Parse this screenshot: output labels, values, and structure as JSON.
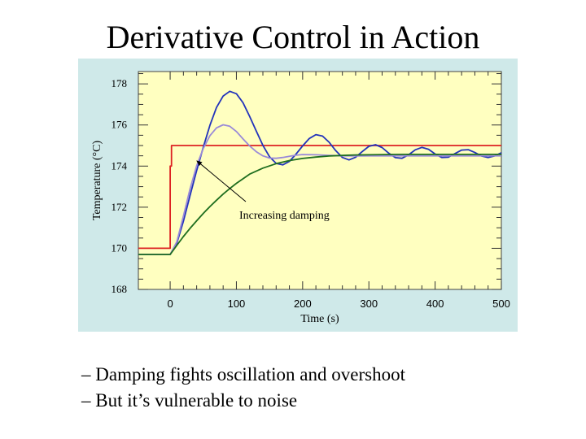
{
  "slide": {
    "title": "Derivative Control in Action",
    "bullets": [
      "– Damping fights oscillation and overshoot",
      "– But it’s vulnerable to noise"
    ]
  },
  "chart_data": {
    "type": "line",
    "title": "",
    "xlabel": "Time (s)",
    "ylabel": "Temperature (°C)",
    "xlim": [
      -48,
      500
    ],
    "ylim": [
      168,
      178.6
    ],
    "xticks": [
      0,
      100,
      200,
      300,
      400,
      500
    ],
    "yticks": [
      168,
      170,
      172,
      174,
      176,
      178
    ],
    "grid": false,
    "annotation": "Increasing damping",
    "colors": {
      "plot_bg": "#ffffc0",
      "frame_bg": "#cfe9e9"
    },
    "series": [
      {
        "color": "#dd2222",
        "x": [
          -48,
          0,
          0,
          2,
          2,
          500
        ],
        "y": [
          170,
          170,
          174,
          174,
          175,
          175
        ]
      },
      {
        "color": "#2233bb",
        "x": [
          -48,
          0,
          10,
          20,
          30,
          40,
          50,
          60,
          70,
          80,
          90,
          100,
          110,
          120,
          130,
          140,
          150,
          160,
          170,
          180,
          190,
          200,
          210,
          220,
          230,
          240,
          250,
          260,
          270,
          280,
          290,
          300,
          310,
          320,
          330,
          340,
          350,
          360,
          370,
          380,
          390,
          400,
          410,
          420,
          430,
          440,
          450,
          460,
          470,
          480,
          490,
          500
        ],
        "y": [
          169.7,
          169.7,
          170.24,
          171.31,
          172.57,
          173.78,
          174.92,
          175.98,
          176.85,
          177.41,
          177.64,
          177.52,
          177.08,
          176.42,
          175.7,
          175.01,
          174.46,
          174.13,
          174.06,
          174.23,
          174.58,
          174.98,
          175.34,
          175.53,
          175.46,
          175.16,
          174.75,
          174.42,
          174.3,
          174.43,
          174.71,
          174.96,
          175.04,
          174.9,
          174.63,
          174.41,
          174.38,
          174.55,
          174.79,
          174.91,
          174.82,
          174.59,
          174.42,
          174.43,
          174.61,
          174.78,
          174.8,
          174.66,
          174.49,
          174.42,
          174.5,
          174.65
        ]
      },
      {
        "color": "#9a8ad8",
        "x": [
          -48,
          0,
          10,
          20,
          30,
          40,
          50,
          60,
          70,
          80,
          90,
          100,
          110,
          120,
          130,
          140,
          150,
          160,
          170,
          180,
          190,
          200,
          220,
          240,
          260,
          280,
          300,
          350,
          400,
          450,
          500
        ],
        "y": [
          169.7,
          169.7,
          170.31,
          171.56,
          172.89,
          174.01,
          174.86,
          175.48,
          175.86,
          176.01,
          175.94,
          175.68,
          175.32,
          174.98,
          174.7,
          174.5,
          174.39,
          174.38,
          174.42,
          174.48,
          174.53,
          174.56,
          174.55,
          174.52,
          174.5,
          174.49,
          174.5,
          174.5,
          174.5,
          174.5,
          174.5
        ]
      },
      {
        "color": "#1f6e1f",
        "x": [
          -48,
          0,
          10,
          20,
          30,
          40,
          50,
          60,
          70,
          80,
          90,
          100,
          120,
          140,
          160,
          180,
          200,
          220,
          240,
          260,
          280,
          300,
          350,
          400,
          450,
          500
        ],
        "y": [
          169.7,
          169.7,
          170.14,
          170.57,
          170.97,
          171.34,
          171.7,
          172.03,
          172.34,
          172.64,
          172.91,
          173.16,
          173.61,
          173.9,
          174.12,
          174.27,
          174.37,
          174.44,
          174.49,
          174.52,
          174.54,
          174.55,
          174.57,
          174.57,
          174.57,
          174.57
        ]
      }
    ]
  }
}
